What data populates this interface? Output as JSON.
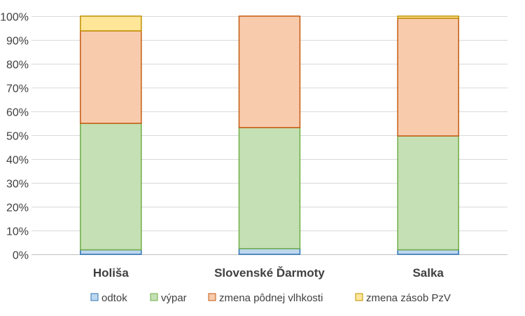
{
  "chart_data": {
    "type": "bar",
    "stacked": true,
    "percent": true,
    "categories": [
      "Holiša",
      "Slovenské Ďarmoty",
      "Salka"
    ],
    "series": [
      {
        "name": "odtok",
        "values": [
          1.9,
          2.4,
          1.9
        ],
        "fill": "#bdd7ee",
        "stroke": "#2e75b6"
      },
      {
        "name": "výpar",
        "values": [
          53.1,
          50.8,
          47.8
        ],
        "fill": "#c5e0b4",
        "stroke": "#70ad47"
      },
      {
        "name": "zmena pôdnej vlhkosti",
        "values": [
          38.8,
          46.8,
          49.4
        ],
        "fill": "#f8cbad",
        "stroke": "#c55a11"
      },
      {
        "name": "zmena zásob PzV",
        "values": [
          6.2,
          0,
          0.9
        ],
        "fill": "#ffe699",
        "stroke": "#bf9000"
      }
    ],
    "yticks": [
      "0%",
      "10%",
      "20%",
      "30%",
      "40%",
      "50%",
      "60%",
      "70%",
      "80%",
      "90%",
      "100%"
    ],
    "ylim": [
      0,
      100
    ],
    "grid": true,
    "legend": "bottom",
    "title": "",
    "xlabel": "",
    "ylabel": ""
  }
}
